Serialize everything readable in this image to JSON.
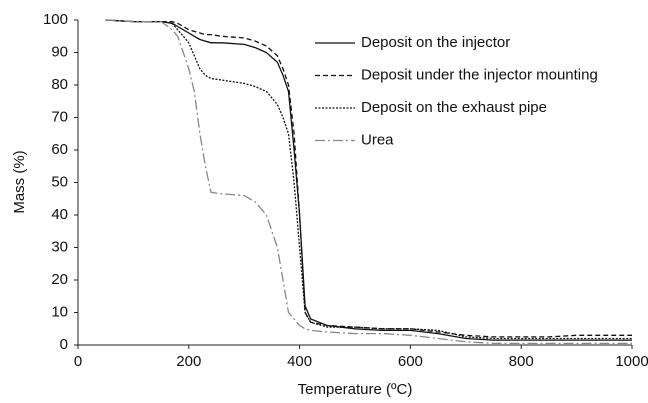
{
  "chart_data": {
    "type": "line",
    "x_label": "Temperature (ºC)",
    "y_label": "Mass (%)",
    "x": [
      50,
      100,
      150,
      170,
      180,
      190,
      200,
      210,
      220,
      230,
      240,
      260,
      300,
      320,
      340,
      360,
      370,
      380,
      390,
      400,
      410,
      420,
      450,
      500,
      550,
      600,
      650,
      700,
      750,
      800,
      850,
      900,
      950,
      1000
    ],
    "series": [
      {
        "name": "Deposit on the injector",
        "color": "#111111",
        "style": "solid",
        "values": [
          100,
          99.5,
          99.5,
          99,
          98,
          97,
          96,
          95,
          94,
          93.5,
          93,
          93,
          92.5,
          91.5,
          90,
          87,
          83,
          78,
          60,
          40,
          12,
          8,
          6,
          5,
          4.5,
          4.5,
          3.5,
          2,
          1.5,
          1.5,
          1.5,
          1.5,
          1.5,
          1.5
        ]
      },
      {
        "name": "Deposit under the injector mounting",
        "color": "#111111",
        "style": "dashed",
        "values": [
          100,
          99.5,
          99.5,
          99.5,
          99,
          98,
          97,
          96.5,
          96,
          95.5,
          95.5,
          95,
          94.5,
          93.5,
          92,
          89,
          85,
          80,
          65,
          40,
          10,
          7,
          6,
          5.5,
          5,
          5,
          4,
          3,
          2.5,
          2.5,
          2.5,
          3,
          3,
          3
        ]
      },
      {
        "name": "Deposit on the exhaust pipe",
        "color": "#111111",
        "style": "dotted",
        "values": [
          100,
          99.5,
          99.5,
          99,
          97,
          95,
          93,
          89,
          85,
          83,
          82,
          81.5,
          80.5,
          79.5,
          78,
          74,
          70,
          65,
          50,
          30,
          10,
          7,
          5.5,
          5.5,
          5,
          5,
          4.5,
          2.5,
          2,
          2,
          2,
          2,
          2,
          2
        ]
      },
      {
        "name": "Urea",
        "color": "#888888",
        "style": "dashdot",
        "values": [
          100,
          99.5,
          99.5,
          97,
          95,
          90,
          85,
          78,
          65,
          55,
          47,
          46.5,
          46,
          44,
          40,
          30,
          20,
          10,
          8,
          6,
          5,
          4.5,
          4,
          3.5,
          3.5,
          3,
          2,
          1,
          0.5,
          0.5,
          0.5,
          0.5,
          0.5,
          0.5
        ]
      }
    ],
    "xlim": [
      0,
      1000
    ],
    "xticks": [
      0,
      200,
      400,
      600,
      800,
      1000
    ],
    "ylim": [
      0,
      100
    ],
    "yticks": [
      0,
      10,
      20,
      30,
      40,
      50,
      60,
      70,
      80,
      90,
      100
    ],
    "grid": false,
    "legend": "upper right"
  }
}
